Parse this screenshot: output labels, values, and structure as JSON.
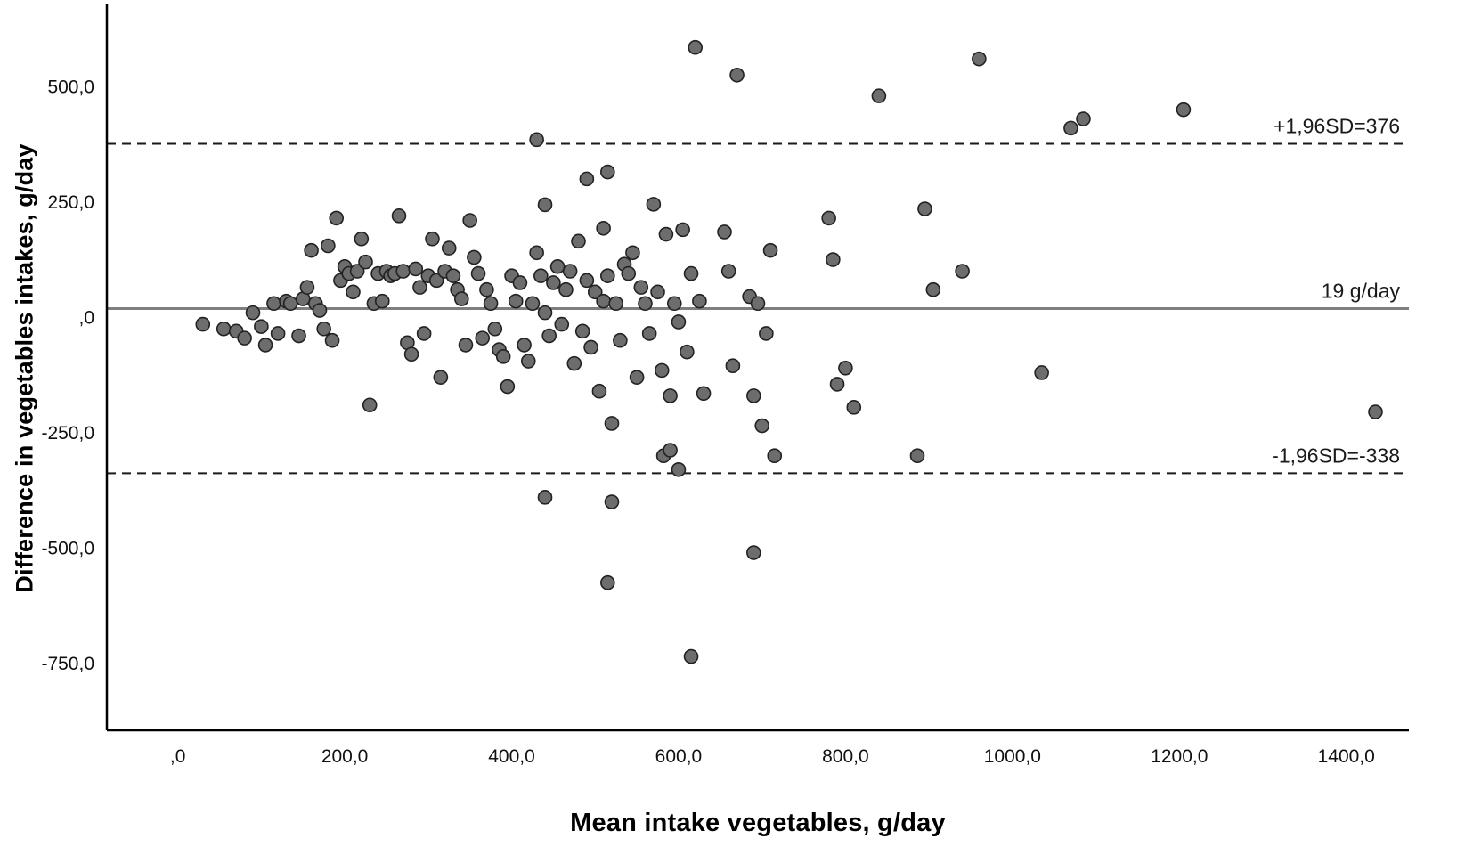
{
  "chart_data": {
    "type": "scatter",
    "title": "",
    "xlabel": "Mean intake vegetables, g/day",
    "ylabel": "Difference in vegetables intakes, g/day",
    "xlim": [
      -85,
      1475
    ],
    "ylim": [
      -895,
      680
    ],
    "grid": false,
    "x_ticks": {
      "values": [
        0,
        200,
        400,
        600,
        800,
        1000,
        1200,
        1400
      ],
      "labels": [
        ",0",
        "200,0",
        "400,0",
        "600,0",
        "800,0",
        "1000,0",
        "1200,0",
        "1400,0"
      ]
    },
    "y_ticks": {
      "values": [
        500,
        250,
        0,
        -250,
        -500,
        -750
      ],
      "labels": [
        "500,0",
        "250,0",
        ",0",
        "-250,0",
        "-500,0",
        "-750,0"
      ]
    },
    "reference_lines": [
      {
        "name": "upper-loa",
        "value": 376,
        "style": "dashed",
        "color": "#1a1a1a",
        "width": 2,
        "label": "+1,96SD=376"
      },
      {
        "name": "mean",
        "value": 19,
        "style": "solid",
        "color": "#7f7f7f",
        "width": 3,
        "label": "19 g/day"
      },
      {
        "name": "lower-loa",
        "value": -338,
        "style": "dashed",
        "color": "#1a1a1a",
        "width": 2,
        "label": "-1,96SD=-338"
      }
    ],
    "point_style": {
      "fill": "#6d6d6d",
      "stroke": "#222222",
      "radius": 7.5
    },
    "axis_color": "#000000",
    "tick_label_color": "#111111",
    "annotation_color": "#1a1a1a",
    "points": [
      [
        30,
        -15
      ],
      [
        55,
        -25
      ],
      [
        70,
        -30
      ],
      [
        80,
        -45
      ],
      [
        90,
        10
      ],
      [
        100,
        -20
      ],
      [
        105,
        -60
      ],
      [
        115,
        30
      ],
      [
        120,
        -35
      ],
      [
        130,
        35
      ],
      [
        135,
        30
      ],
      [
        145,
        -40
      ],
      [
        150,
        40
      ],
      [
        155,
        65
      ],
      [
        160,
        145
      ],
      [
        165,
        30
      ],
      [
        170,
        15
      ],
      [
        175,
        -25
      ],
      [
        180,
        155
      ],
      [
        185,
        -50
      ],
      [
        190,
        215
      ],
      [
        195,
        80
      ],
      [
        200,
        110
      ],
      [
        205,
        95
      ],
      [
        210,
        55
      ],
      [
        215,
        100
      ],
      [
        220,
        170
      ],
      [
        225,
        120
      ],
      [
        230,
        -190
      ],
      [
        235,
        30
      ],
      [
        240,
        95
      ],
      [
        245,
        35
      ],
      [
        250,
        100
      ],
      [
        255,
        90
      ],
      [
        260,
        95
      ],
      [
        265,
        220
      ],
      [
        270,
        100
      ],
      [
        275,
        -55
      ],
      [
        280,
        -80
      ],
      [
        285,
        105
      ],
      [
        290,
        65
      ],
      [
        295,
        -35
      ],
      [
        300,
        90
      ],
      [
        305,
        170
      ],
      [
        310,
        80
      ],
      [
        315,
        -130
      ],
      [
        320,
        100
      ],
      [
        325,
        150
      ],
      [
        330,
        90
      ],
      [
        335,
        60
      ],
      [
        340,
        40
      ],
      [
        345,
        -60
      ],
      [
        350,
        210
      ],
      [
        355,
        130
      ],
      [
        360,
        95
      ],
      [
        365,
        -45
      ],
      [
        370,
        60
      ],
      [
        375,
        30
      ],
      [
        380,
        -25
      ],
      [
        385,
        -70
      ],
      [
        390,
        -85
      ],
      [
        395,
        -150
      ],
      [
        400,
        90
      ],
      [
        405,
        35
      ],
      [
        410,
        75
      ],
      [
        415,
        -60
      ],
      [
        420,
        -95
      ],
      [
        425,
        30
      ],
      [
        430,
        140
      ],
      [
        430,
        385
      ],
      [
        435,
        90
      ],
      [
        440,
        10
      ],
      [
        440,
        244
      ],
      [
        440,
        -390
      ],
      [
        445,
        -40
      ],
      [
        450,
        75
      ],
      [
        455,
        110
      ],
      [
        460,
        -15
      ],
      [
        465,
        60
      ],
      [
        470,
        100
      ],
      [
        475,
        -100
      ],
      [
        480,
        165
      ],
      [
        485,
        -30
      ],
      [
        490,
        80
      ],
      [
        490,
        300
      ],
      [
        495,
        -65
      ],
      [
        500,
        55
      ],
      [
        505,
        -160
      ],
      [
        510,
        35
      ],
      [
        510,
        193
      ],
      [
        515,
        90
      ],
      [
        515,
        315
      ],
      [
        515,
        -575
      ],
      [
        520,
        -230
      ],
      [
        520,
        -400
      ],
      [
        525,
        30
      ],
      [
        530,
        -50
      ],
      [
        535,
        115
      ],
      [
        540,
        95
      ],
      [
        545,
        140
      ],
      [
        550,
        -130
      ],
      [
        555,
        65
      ],
      [
        560,
        30
      ],
      [
        565,
        -35
      ],
      [
        570,
        245
      ],
      [
        575,
        55
      ],
      [
        580,
        -115
      ],
      [
        582,
        -300
      ],
      [
        585,
        180
      ],
      [
        590,
        -288
      ],
      [
        590,
        -170
      ],
      [
        595,
        30
      ],
      [
        600,
        -10
      ],
      [
        600,
        -330
      ],
      [
        605,
        190
      ],
      [
        610,
        -75
      ],
      [
        615,
        95
      ],
      [
        615,
        -735
      ],
      [
        620,
        585
      ],
      [
        625,
        35
      ],
      [
        630,
        -165
      ],
      [
        655,
        185
      ],
      [
        660,
        100
      ],
      [
        665,
        -105
      ],
      [
        670,
        525
      ],
      [
        685,
        45
      ],
      [
        690,
        -170
      ],
      [
        690,
        -510
      ],
      [
        695,
        30
      ],
      [
        700,
        -235
      ],
      [
        705,
        -35
      ],
      [
        710,
        145
      ],
      [
        715,
        -300
      ],
      [
        780,
        215
      ],
      [
        785,
        125
      ],
      [
        790,
        -145
      ],
      [
        800,
        -110
      ],
      [
        810,
        -195
      ],
      [
        840,
        480
      ],
      [
        886,
        -300
      ],
      [
        895,
        235
      ],
      [
        905,
        60
      ],
      [
        940,
        100
      ],
      [
        960,
        560
      ],
      [
        1035,
        -120
      ],
      [
        1070,
        410
      ],
      [
        1085,
        430
      ],
      [
        1205,
        450
      ],
      [
        1435,
        -205
      ]
    ]
  }
}
